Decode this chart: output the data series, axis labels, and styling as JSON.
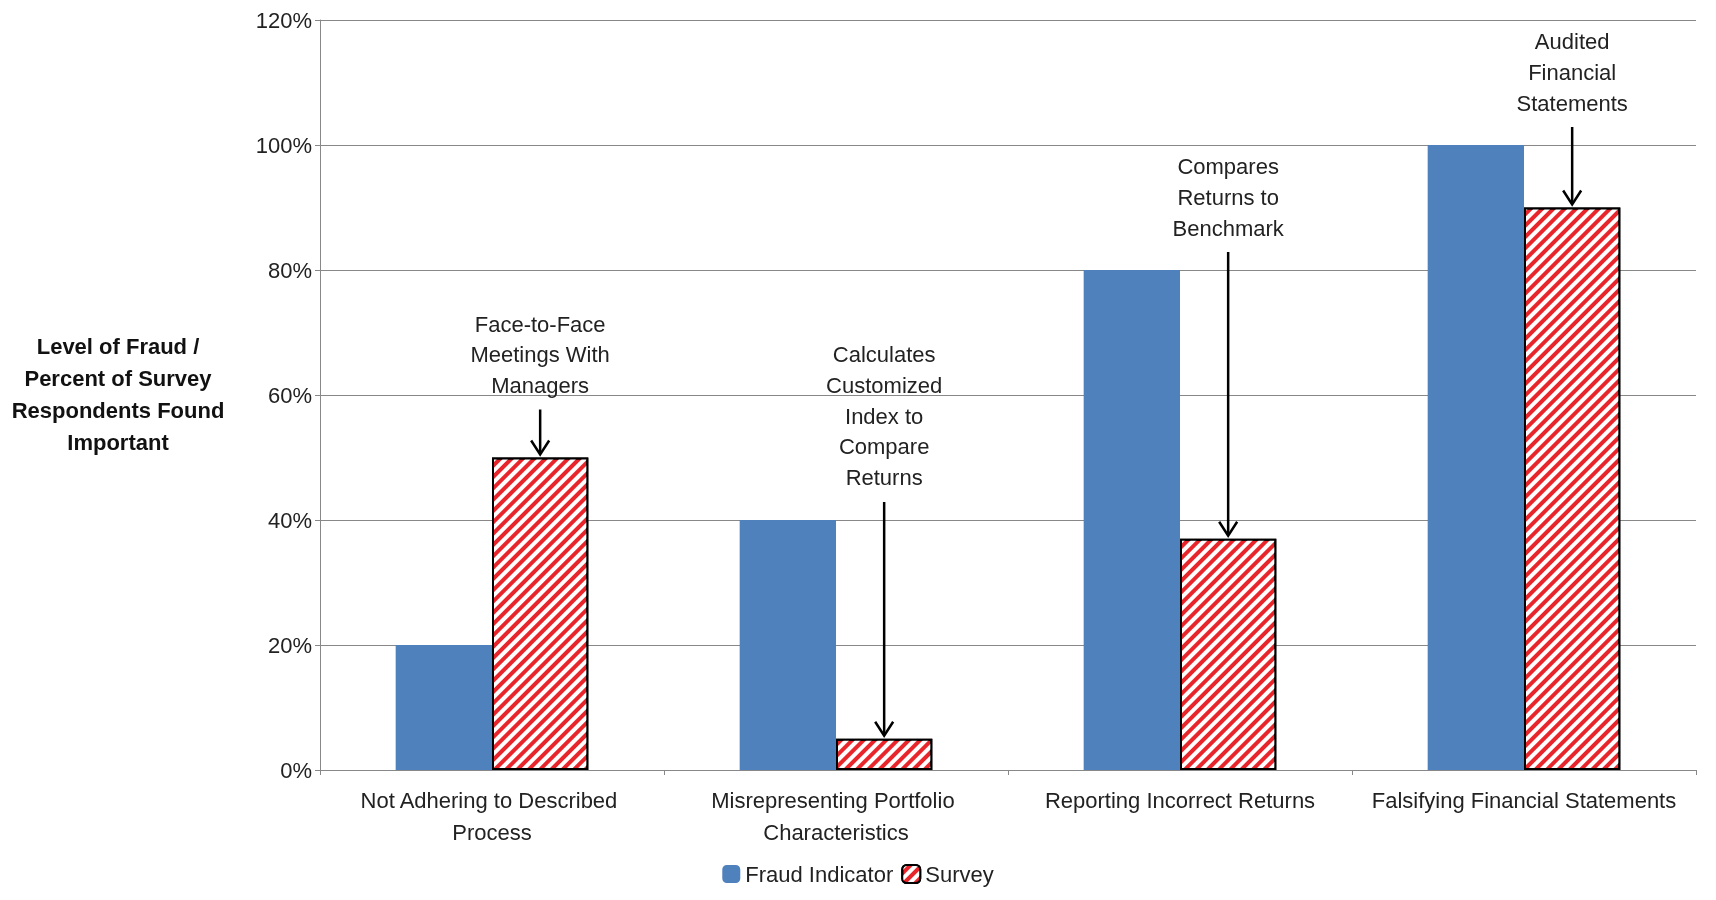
{
  "chart_data": {
    "type": "bar",
    "ylabel": "Level of Fraud / Percent of Survey Respondents Found Important",
    "categories": [
      "Not Adhering to Described Process",
      "Misrepresenting Portfolio Characteristics",
      "Reporting Incorrect Returns",
      "Falsifying Financial Statements"
    ],
    "series": [
      {
        "name": "Fraud Indicator",
        "color": "#4f81bd",
        "values": [
          20,
          40,
          80,
          100
        ]
      },
      {
        "name": "Survey",
        "color": "#e8252b",
        "values": [
          50,
          5,
          37,
          90
        ]
      }
    ],
    "ylim": [
      0,
      120
    ],
    "yticks": [
      {
        "value": 0,
        "label": "0%"
      },
      {
        "value": 20,
        "label": "20%"
      },
      {
        "value": 40,
        "label": "40%"
      },
      {
        "value": 60,
        "label": "60%"
      },
      {
        "value": 80,
        "label": "80%"
      },
      {
        "value": 100,
        "label": "100%"
      },
      {
        "value": 120,
        "label": "120%"
      }
    ],
    "grid": "y",
    "legend": "bottom",
    "annotations": [
      "Face-to-Face Meetings With Managers",
      "Calculates Customized Index to Compare Returns",
      "Compares Returns to Benchmark",
      "Audited Financial Statements"
    ]
  }
}
